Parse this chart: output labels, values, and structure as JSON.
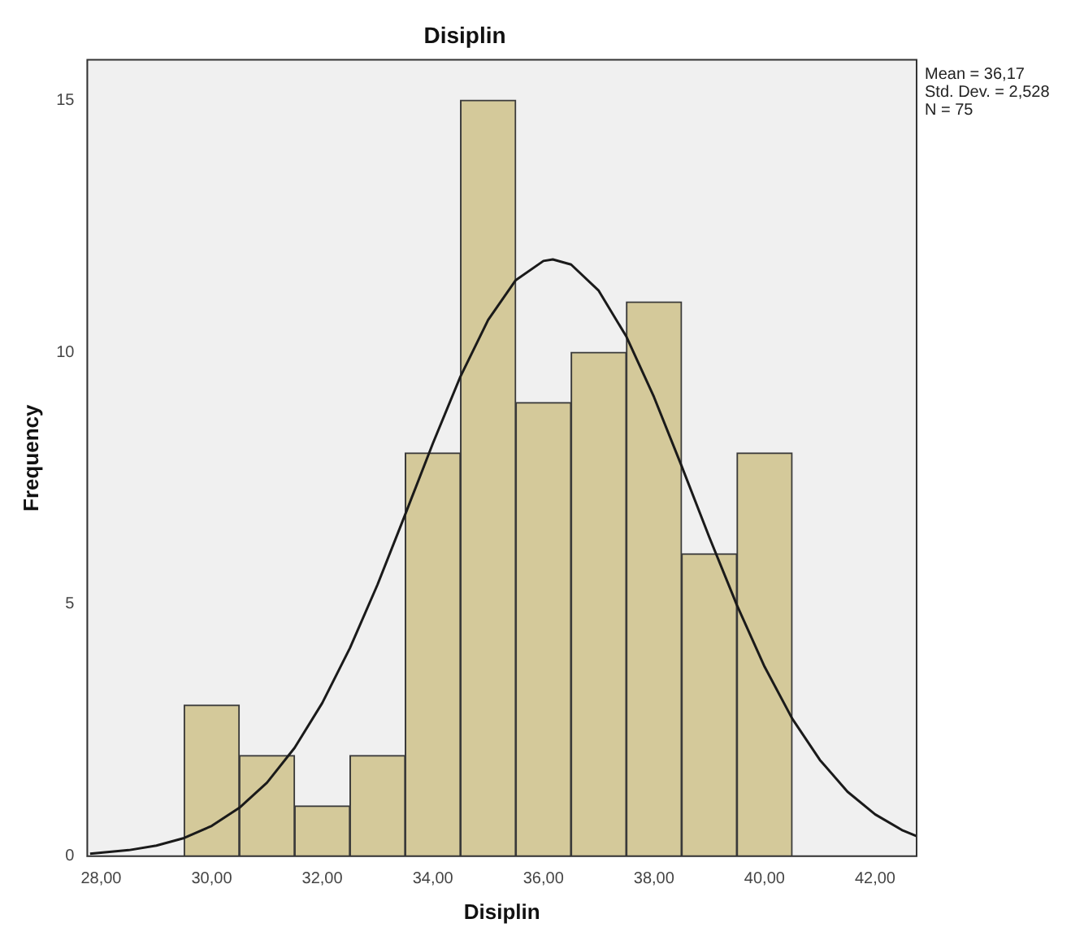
{
  "chart_data": {
    "type": "histogram",
    "title": "Disiplin",
    "xlabel": "Disiplin",
    "ylabel": "Frequency",
    "bins": [
      29.5,
      30.5,
      31.5,
      32.5,
      33.5,
      34.5,
      35.5,
      36.5,
      37.5,
      38.5,
      39.5,
      40.5
    ],
    "values": [
      3,
      2,
      1,
      2,
      8,
      15,
      9,
      10,
      11,
      6,
      8
    ],
    "color": "#d4c99a",
    "series": [
      {
        "type": "line",
        "color": "#1a1a1a",
        "x": [
          27.8,
          28.5,
          29,
          29.5,
          30,
          30.5,
          31,
          31.5,
          32,
          32.5,
          33,
          33.5,
          34,
          34.5,
          35,
          35.5,
          36,
          36.17,
          36.5,
          37,
          37.5,
          38,
          38.5,
          39,
          39.5,
          40,
          40.5,
          41,
          41.5,
          42,
          42.5,
          42.75
        ],
        "values": [
          0.05,
          0.12,
          0.21,
          0.36,
          0.6,
          0.96,
          1.46,
          2.15,
          3.04,
          4.13,
          5.39,
          6.78,
          8.19,
          9.52,
          10.64,
          11.43,
          11.81,
          11.84,
          11.74,
          11.22,
          10.31,
          9.11,
          7.74,
          6.33,
          4.98,
          3.76,
          2.73,
          1.91,
          1.28,
          0.83,
          0.51,
          0.4
        ]
      }
    ],
    "xlim": [
      27.75,
      42.75
    ],
    "ylim": [
      0,
      15.8
    ],
    "xticks": [
      {
        "value": 28,
        "label": "28,00"
      },
      {
        "value": 30,
        "label": "30,00"
      },
      {
        "value": 32,
        "label": "32,00"
      },
      {
        "value": 34,
        "label": "34,00"
      },
      {
        "value": 36,
        "label": "36,00"
      },
      {
        "value": 38,
        "label": "38,00"
      },
      {
        "value": 40,
        "label": "40,00"
      },
      {
        "value": 42,
        "label": "42,00"
      }
    ],
    "yticks": [
      0,
      5,
      10,
      15
    ],
    "grid": false,
    "legend": false,
    "annotations": [
      "Mean = 36,17",
      "Std. Dev. = 2,528",
      "N = 75"
    ]
  }
}
